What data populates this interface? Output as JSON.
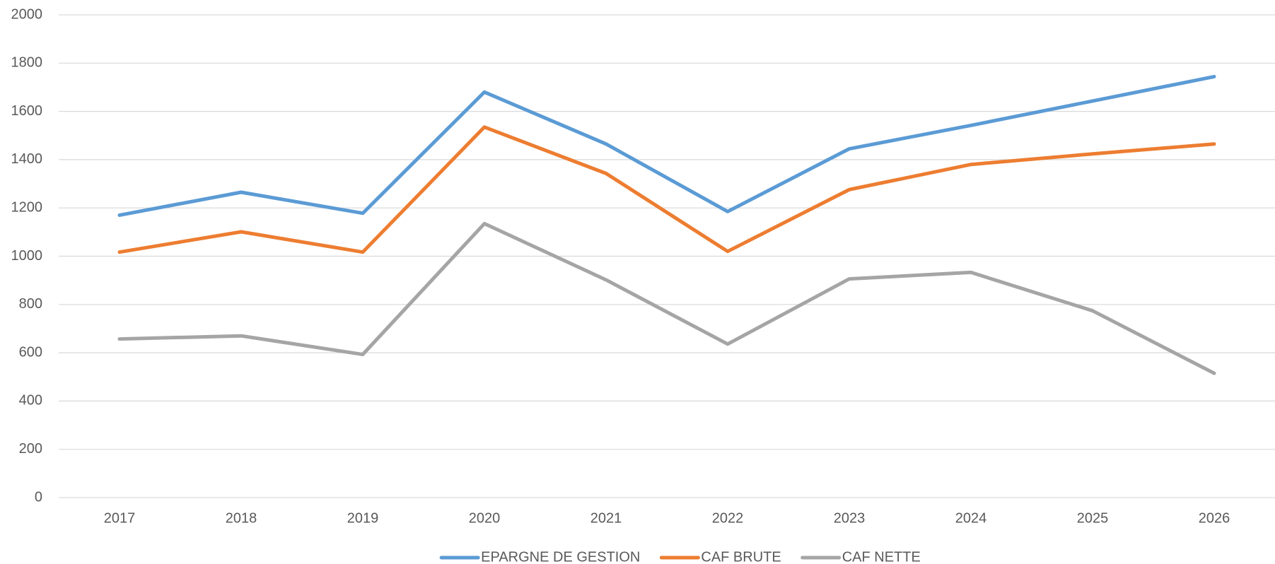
{
  "chart_data": {
    "type": "line",
    "categories": [
      "2017",
      "2018",
      "2019",
      "2020",
      "2021",
      "2022",
      "2023",
      "2024",
      "2025",
      "2026"
    ],
    "series": [
      {
        "name": "EPARGNE DE GESTION",
        "color": "#5b9bd5",
        "values": [
          1170,
          1265,
          1178,
          1680,
          1465,
          1185,
          1445,
          1542,
          1643,
          1744
        ]
      },
      {
        "name": "CAF BRUTE",
        "color": "#ed7d31",
        "values": [
          1017,
          1101,
          1017,
          1535,
          1343,
          1020,
          1276,
          1380,
          1424,
          1465
        ]
      },
      {
        "name": "CAF NETTE",
        "color": "#a5a5a5",
        "values": [
          657,
          670,
          593,
          1135,
          902,
          636,
          906,
          933,
          774,
          515
        ]
      }
    ],
    "ylim": [
      0,
      2000
    ],
    "yticks": [
      0,
      200,
      400,
      600,
      800,
      1000,
      1200,
      1400,
      1600,
      1800,
      2000
    ],
    "grid": true,
    "legend": "bottom"
  }
}
